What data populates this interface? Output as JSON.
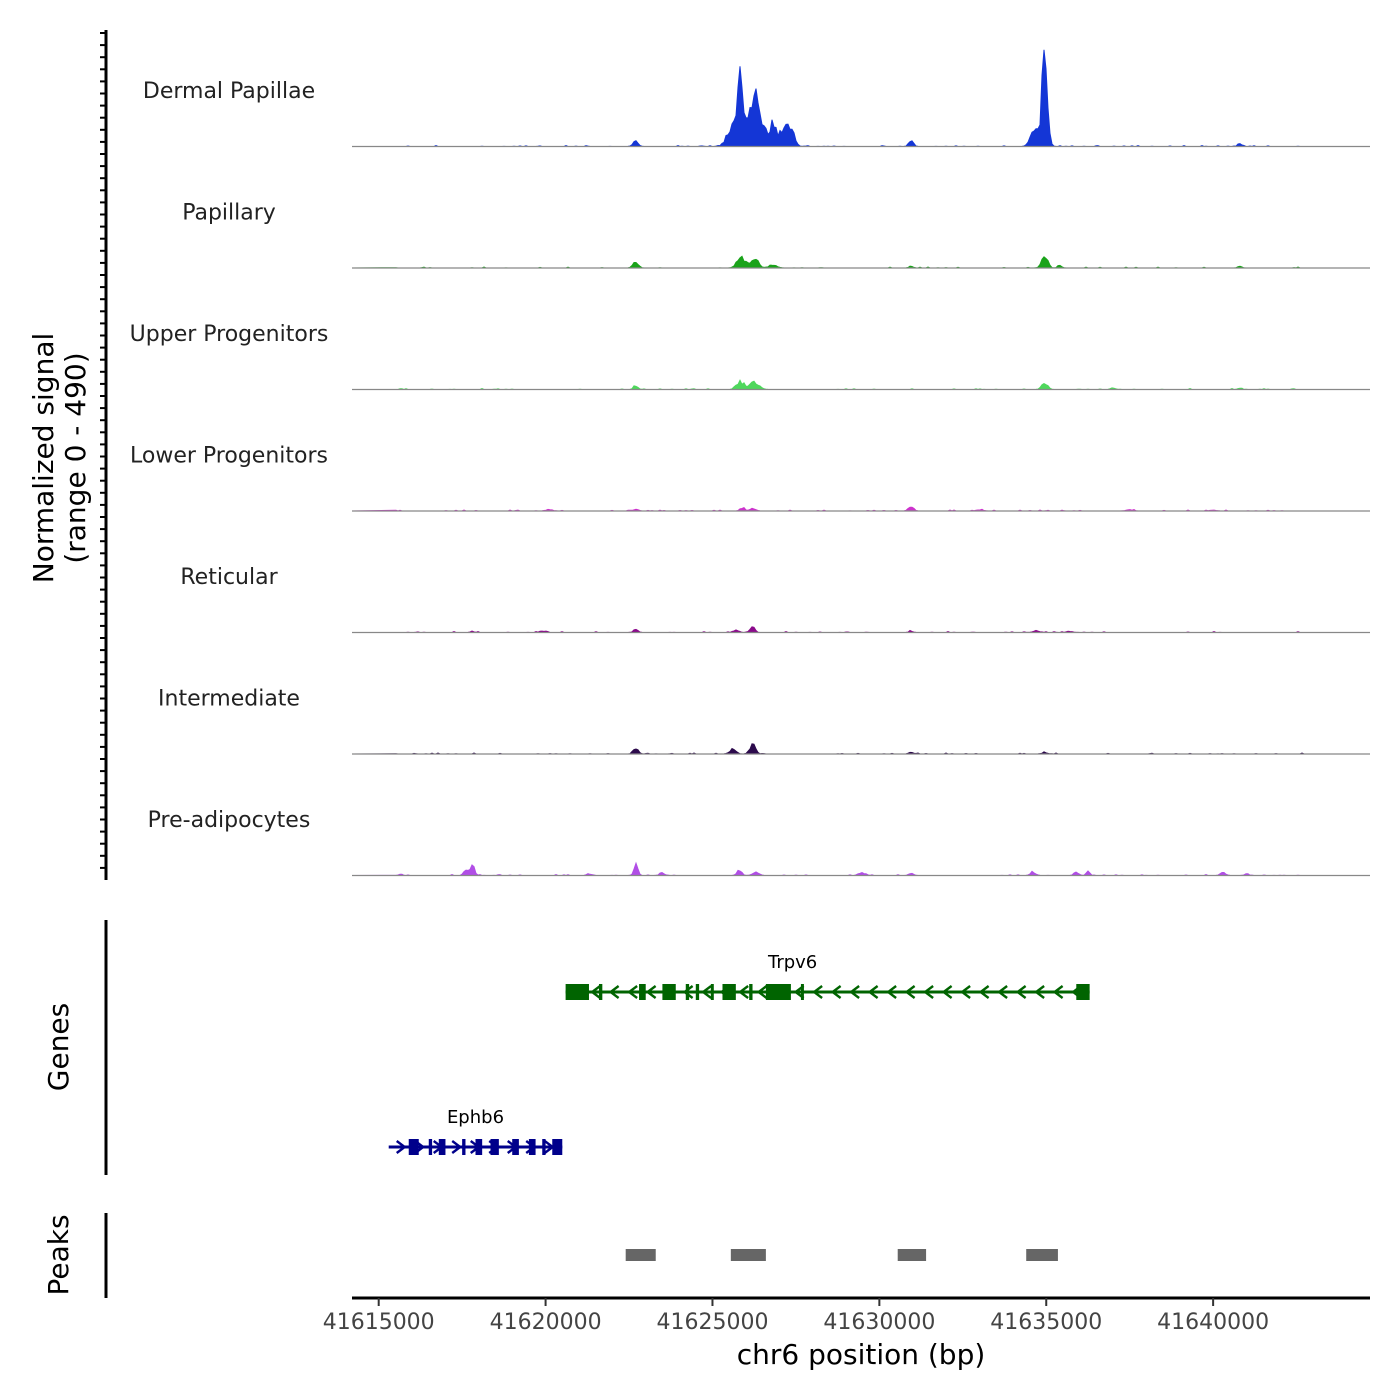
{
  "chart_data": {
    "type": "area",
    "title": "",
    "ylabel_line1": "Normalized signal",
    "ylabel_line2": "(range 0 - 490)",
    "xlabel": "chr6 position (bp)",
    "xlim": [
      41614200,
      41644700
    ],
    "ylim": [
      0,
      490
    ],
    "x_ticks": [
      {
        "value": 41615000,
        "label": "41615000"
      },
      {
        "value": 41620000,
        "label": "41620000"
      },
      {
        "value": 41625000,
        "label": "41625000"
      },
      {
        "value": 41630000,
        "label": "41630000"
      },
      {
        "value": 41635000,
        "label": "41635000"
      },
      {
        "value": 41640000,
        "label": "41640000"
      }
    ],
    "tracks": [
      {
        "name": "Dermal Papillae",
        "color": "#1436d6",
        "peaks": [
          [
            41622700,
            25,
            80
          ],
          [
            41625600,
            120,
            150
          ],
          [
            41625820,
            460,
            70
          ],
          [
            41626000,
            150,
            110
          ],
          [
            41626250,
            230,
            90
          ],
          [
            41626450,
            150,
            120
          ],
          [
            41626800,
            120,
            100
          ],
          [
            41627100,
            100,
            110
          ],
          [
            41627350,
            100,
            100
          ],
          [
            41630950,
            30,
            70
          ],
          [
            41634650,
            80,
            120
          ],
          [
            41634950,
            440,
            85
          ],
          [
            41640800,
            18,
            60
          ]
        ]
      },
      {
        "name": "Papillary",
        "color": "#1aa31a",
        "peaks": [
          [
            41622700,
            30,
            80
          ],
          [
            41625850,
            70,
            110
          ],
          [
            41626250,
            45,
            120
          ],
          [
            41626800,
            15,
            120
          ],
          [
            41630950,
            10,
            60
          ],
          [
            41634950,
            60,
            90
          ],
          [
            41635400,
            15,
            60
          ],
          [
            41640800,
            8,
            60
          ]
        ]
      },
      {
        "name": "Upper Progenitors",
        "color": "#4fd75c",
        "peaks": [
          [
            41622700,
            18,
            70
          ],
          [
            41625850,
            40,
            120
          ],
          [
            41626250,
            40,
            130
          ],
          [
            41634950,
            35,
            90
          ],
          [
            41637000,
            10,
            60
          ],
          [
            41640800,
            6,
            60
          ]
        ]
      },
      {
        "name": "Lower Progenitors",
        "color": "#cc33cc",
        "peaks": [
          [
            41620100,
            8,
            100
          ],
          [
            41622700,
            10,
            70
          ],
          [
            41625900,
            18,
            70
          ],
          [
            41626200,
            14,
            90
          ],
          [
            41630950,
            25,
            70
          ],
          [
            41633000,
            6,
            100
          ],
          [
            41637500,
            6,
            100
          ],
          [
            41640000,
            5,
            100
          ]
        ]
      },
      {
        "name": "Reticular",
        "color": "#8b0a8b",
        "peaks": [
          [
            41617800,
            6,
            60
          ],
          [
            41619900,
            8,
            90
          ],
          [
            41622700,
            12,
            80
          ],
          [
            41626200,
            30,
            70
          ],
          [
            41625700,
            12,
            80
          ],
          [
            41630950,
            8,
            60
          ],
          [
            41634700,
            8,
            100
          ],
          [
            41635700,
            6,
            100
          ]
        ]
      },
      {
        "name": "Intermediate",
        "color": "#2c0a4c",
        "peaks": [
          [
            41622700,
            35,
            70
          ],
          [
            41625600,
            25,
            90
          ],
          [
            41626200,
            55,
            80
          ],
          [
            41630950,
            8,
            70
          ],
          [
            41634950,
            8,
            90
          ]
        ]
      },
      {
        "name": "Pre-adipocytes",
        "color": "#b14ee6",
        "peaks": [
          [
            41615650,
            8,
            50
          ],
          [
            41617800,
            50,
            70
          ],
          [
            41617600,
            25,
            60
          ],
          [
            41621300,
            10,
            60
          ],
          [
            41622700,
            55,
            60
          ],
          [
            41623500,
            15,
            60
          ],
          [
            41625800,
            30,
            70
          ],
          [
            41626300,
            20,
            90
          ],
          [
            41629500,
            15,
            90
          ],
          [
            41630950,
            15,
            60
          ],
          [
            41634600,
            20,
            80
          ],
          [
            41635900,
            20,
            70
          ],
          [
            41636250,
            25,
            50
          ],
          [
            41640300,
            15,
            80
          ],
          [
            41641000,
            12,
            60
          ]
        ]
      }
    ],
    "genes": [
      {
        "name": "Trpv6",
        "color": "#006400",
        "start": 41620600,
        "end": 41636300,
        "strand": "-",
        "exons": [
          [
            41620600,
            41621300
          ],
          [
            41621600,
            41621700
          ],
          [
            41622800,
            41623000
          ],
          [
            41623500,
            41623900
          ],
          [
            41624200,
            41624300
          ],
          [
            41624500,
            41624600
          ],
          [
            41624950,
            41625000
          ],
          [
            41625300,
            41625700
          ],
          [
            41626100,
            41626200
          ],
          [
            41626600,
            41627350
          ],
          [
            41627650,
            41627700
          ],
          [
            41635900,
            41636300
          ]
        ]
      },
      {
        "name": "Ephb6",
        "color": "#00008b",
        "start": 41615300,
        "end": 41620500,
        "strand": "+",
        "exons": [
          [
            41615900,
            41616200
          ],
          [
            41616500,
            41616600
          ],
          [
            41616800,
            41617000
          ],
          [
            41617500,
            41617600
          ],
          [
            41617900,
            41618100
          ],
          [
            41618350,
            41618600
          ],
          [
            41619000,
            41619200
          ],
          [
            41619500,
            41619700
          ],
          [
            41619900,
            41620000
          ],
          [
            41620200,
            41620500
          ]
        ]
      }
    ],
    "peak_regions": [
      [
        41622400,
        41623300
      ],
      [
        41625550,
        41626600
      ],
      [
        41630550,
        41631400
      ],
      [
        41634400,
        41635350
      ]
    ],
    "panel_labels": {
      "genes": "Genes",
      "peaks": "Peaks"
    }
  }
}
